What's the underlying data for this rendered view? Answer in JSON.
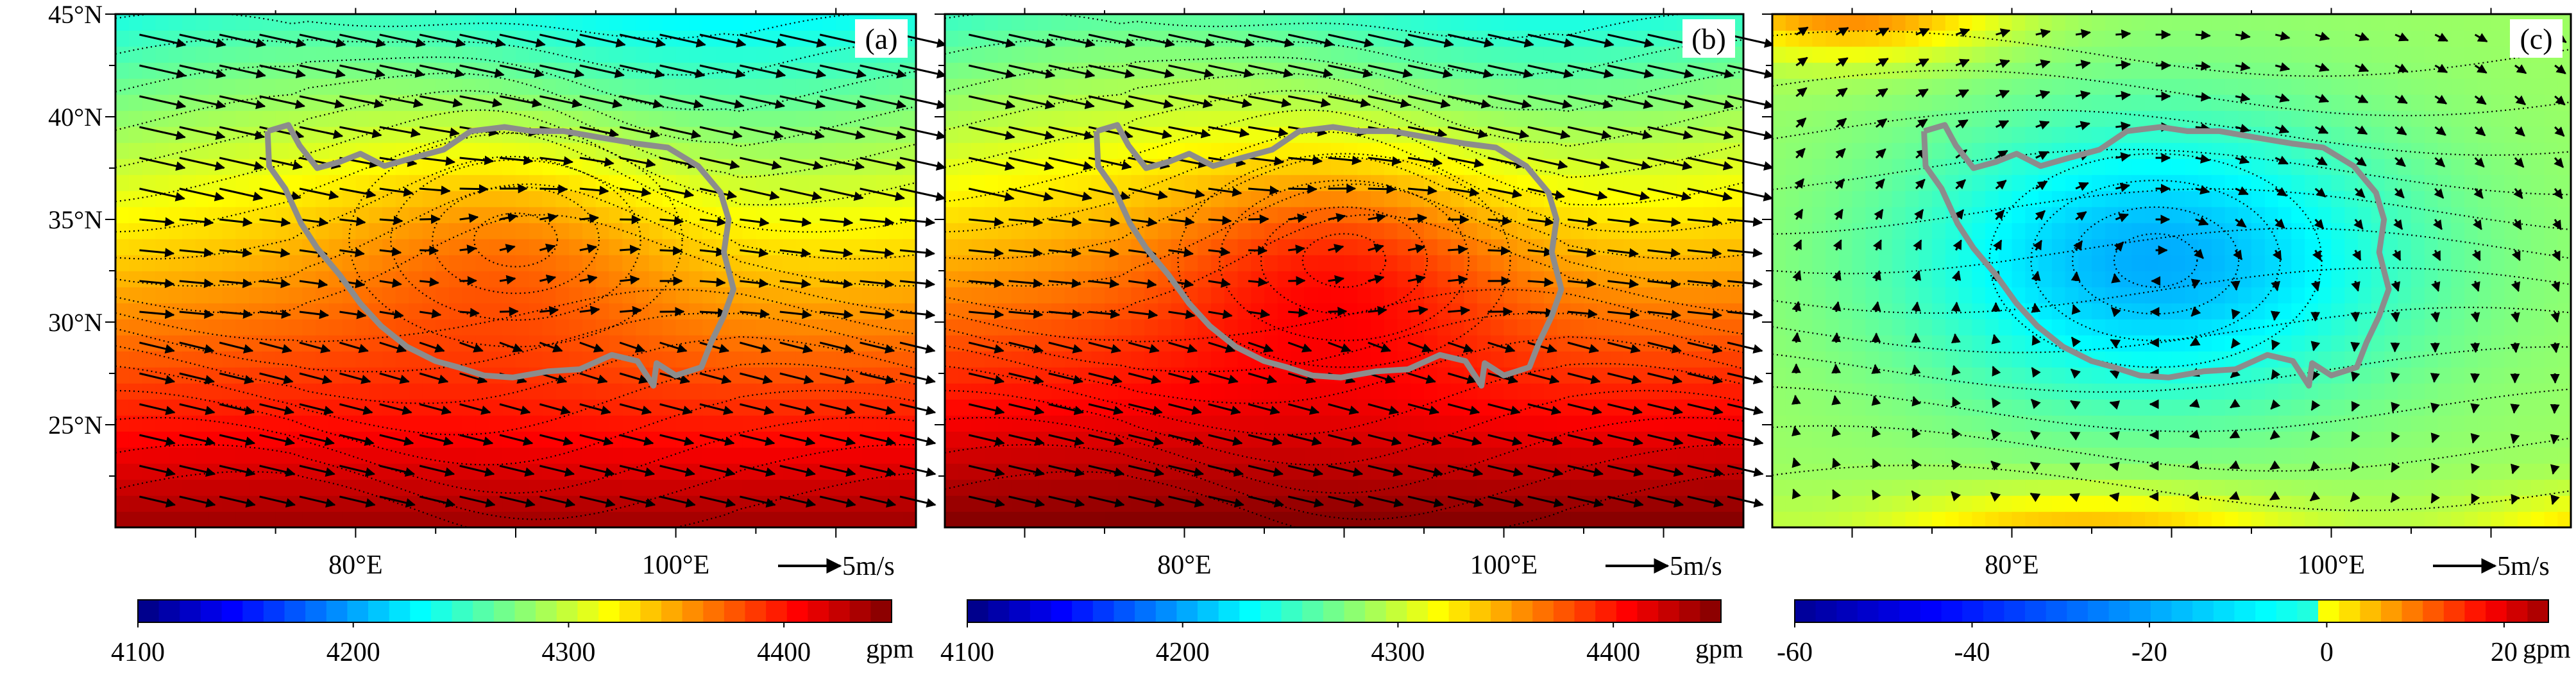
{
  "chart_data": [
    {
      "type": "heatmap",
      "panel_label": "(a)",
      "field": "geopotential height with wind vectors",
      "colorbar": {
        "range": [
          4100,
          4450
        ],
        "ticks": [
          4100,
          4200,
          4300,
          4400
        ],
        "tick_labels": [
          "4100",
          "4200",
          "4300",
          "4400"
        ],
        "unit": "gpm"
      },
      "lat_ticks": [
        "45°N",
        "40°N",
        "35°N",
        "30°N",
        "25°N"
      ],
      "lon_ticks": [
        "80°E",
        "100°E"
      ],
      "lat_range": [
        20,
        45
      ],
      "lon_range": [
        65,
        115
      ],
      "vector_reference": "5m/s",
      "field_model": {
        "north_value": 4240,
        "south_value": 4440,
        "high_center_lat": 34,
        "high_center_lon": 90,
        "high_center_amp": 35
      }
    },
    {
      "type": "heatmap",
      "panel_label": "(b)",
      "field": "geopotential height with wind vectors",
      "colorbar": {
        "range": [
          4100,
          4450
        ],
        "ticks": [
          4100,
          4200,
          4300,
          4400
        ],
        "tick_labels": [
          "4100",
          "4200",
          "4300",
          "4400"
        ],
        "unit": "gpm"
      },
      "lat_ticks": [],
      "lon_ticks": [
        "80°E",
        "100°E"
      ],
      "lat_range": [
        20,
        45
      ],
      "lon_range": [
        65,
        115
      ],
      "vector_reference": "5m/s",
      "field_model": {
        "north_value": 4250,
        "south_value": 4450,
        "high_center_lat": 33,
        "high_center_lon": 90,
        "high_center_amp": 50
      }
    },
    {
      "type": "heatmap",
      "panel_label": "(c)",
      "field": "geopotential height difference with wind vectors",
      "colorbar": {
        "range": [
          -60,
          25
        ],
        "ticks": [
          -60,
          -40,
          -20,
          0,
          20
        ],
        "tick_labels": [
          "-60",
          "-40",
          "-20",
          "0",
          "20"
        ],
        "unit": "gpm"
      },
      "lat_ticks": [],
      "lon_ticks": [
        "80°E",
        "100°E"
      ],
      "lat_range": [
        20,
        45
      ],
      "lon_range": [
        65,
        115
      ],
      "vector_reference": "5m/s",
      "field_model": {
        "low_center_lat": 33,
        "low_center_lon": 89,
        "low_center_value": -35,
        "background_value": -15
      }
    }
  ],
  "colors": {
    "terrain_outline": "#8c8c8c",
    "palette": [
      "#00007f",
      "#0000ff",
      "#007fff",
      "#00ffff",
      "#7fff7f",
      "#ffff00",
      "#ff7f00",
      "#ff0000",
      "#7f0000"
    ]
  }
}
